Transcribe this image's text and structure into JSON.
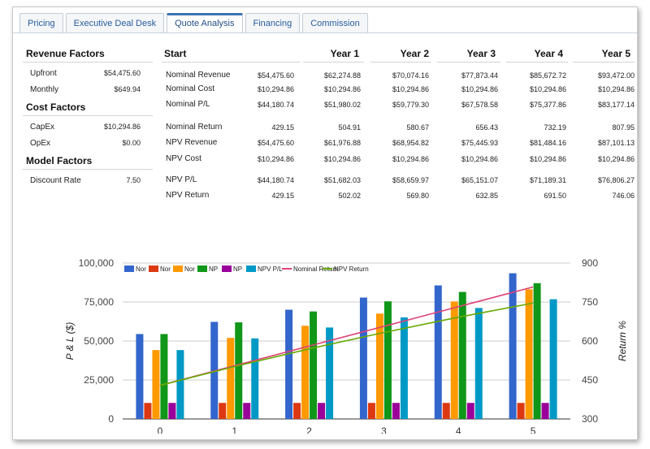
{
  "tabs": [
    "Pricing",
    "Executive Deal Desk",
    "Quote Analysis",
    "Financing",
    "Commission"
  ],
  "active_tab": "Quote Analysis",
  "left": {
    "revenue_title": "Revenue Factors",
    "upfront_label": "Upfront",
    "upfront_value": "$54,475.60",
    "monthly_label": "Monthly",
    "monthly_value": "$649.94",
    "cost_title": "Cost Factors",
    "capex_label": "CapEx",
    "capex_value": "$10,294.86",
    "opex_label": "OpEx",
    "opex_value": "$0.00",
    "model_title": "Model Factors",
    "discount_label": "Discount Rate",
    "discount_value": "7.50"
  },
  "table": {
    "headers": [
      "Start",
      "Year 1",
      "Year 2",
      "Year 3",
      "Year 4",
      "Year 5"
    ],
    "rows": [
      {
        "label": "Nominal Revenue",
        "values": [
          "$54,475.60",
          "$62,274.88",
          "$70,074.16",
          "$77,873.44",
          "$85,672.72",
          "$93,472.00"
        ]
      },
      {
        "label": "Nominal Cost",
        "values": [
          "$10,294.86",
          "$10,294.86",
          "$10,294.86",
          "$10,294.86",
          "$10,294.86",
          "$10,294.86"
        ]
      },
      {
        "label": "Nominal P/L",
        "values": [
          "$44,180.74",
          "$51,980.02",
          "$59,779.30",
          "$67,578.58",
          "$75,377.86",
          "$83,177.14"
        ]
      },
      {
        "label": "Nominal Return",
        "values": [
          "429.15",
          "504.91",
          "580.67",
          "656.43",
          "732.19",
          "807.95"
        ]
      },
      {
        "label": "NPV Revenue",
        "values": [
          "$54,475.60",
          "$61,976.88",
          "$68,954.82",
          "$75,445.93",
          "$81,484.16",
          "$87,101.13"
        ]
      },
      {
        "label": "NPV Cost",
        "values": [
          "$10,294.86",
          "$10,294.86",
          "$10,294.86",
          "$10,294.86",
          "$10,294.86",
          "$10,294.86"
        ]
      },
      {
        "label": "NPV P/L",
        "values": [
          "$44,180.74",
          "$51,682.03",
          "$58,659.97",
          "$65,151.07",
          "$71,189.31",
          "$76,806.27"
        ]
      },
      {
        "label": "NPV Return",
        "values": [
          "429.15",
          "502.02",
          "569.80",
          "632.85",
          "691.50",
          "746.06"
        ]
      }
    ]
  },
  "chart_data": {
    "type": "bar",
    "categories": [
      "0",
      "1",
      "2",
      "3",
      "4",
      "5"
    ],
    "series": [
      {
        "name": "Nor",
        "color": "#3366cc",
        "values": [
          54475.6,
          62274.88,
          70074.16,
          77873.44,
          85672.72,
          93472.0
        ]
      },
      {
        "name": "Nor",
        "color": "#dc3912",
        "values": [
          10294.86,
          10294.86,
          10294.86,
          10294.86,
          10294.86,
          10294.86
        ]
      },
      {
        "name": "Nor",
        "color": "#ff9900",
        "values": [
          44180.74,
          51980.02,
          59779.3,
          67578.58,
          75377.86,
          83177.14
        ]
      },
      {
        "name": "NP",
        "color": "#109618",
        "values": [
          54475.6,
          61976.88,
          68954.82,
          75445.93,
          81484.16,
          87101.13
        ]
      },
      {
        "name": "NP",
        "color": "#990099",
        "values": [
          10294.86,
          10294.86,
          10294.86,
          10294.86,
          10294.86,
          10294.86
        ]
      },
      {
        "name": "NPV P/L",
        "color": "#0099c6",
        "values": [
          44180.74,
          51682.03,
          58659.97,
          65151.07,
          71189.31,
          76806.27
        ]
      }
    ],
    "lines": [
      {
        "name": "Nominal Return",
        "color": "#dd4477",
        "values": [
          429.15,
          504.91,
          580.67,
          656.43,
          732.19,
          807.95
        ]
      },
      {
        "name": "NPV Return",
        "color": "#66aa00",
        "values": [
          429.15,
          502.02,
          569.8,
          632.85,
          691.5,
          746.06
        ]
      }
    ],
    "ylabel": "P & L ($)",
    "y2label": "Return %",
    "ylim": [
      0,
      100000
    ],
    "y2lim": [
      300,
      900
    ],
    "yticks": [
      "0",
      "25,000",
      "50,000",
      "75,000",
      "100,000"
    ],
    "y2ticks": [
      "300",
      "450",
      "600",
      "750",
      "900"
    ],
    "legend_position": "top",
    "grid": true
  }
}
